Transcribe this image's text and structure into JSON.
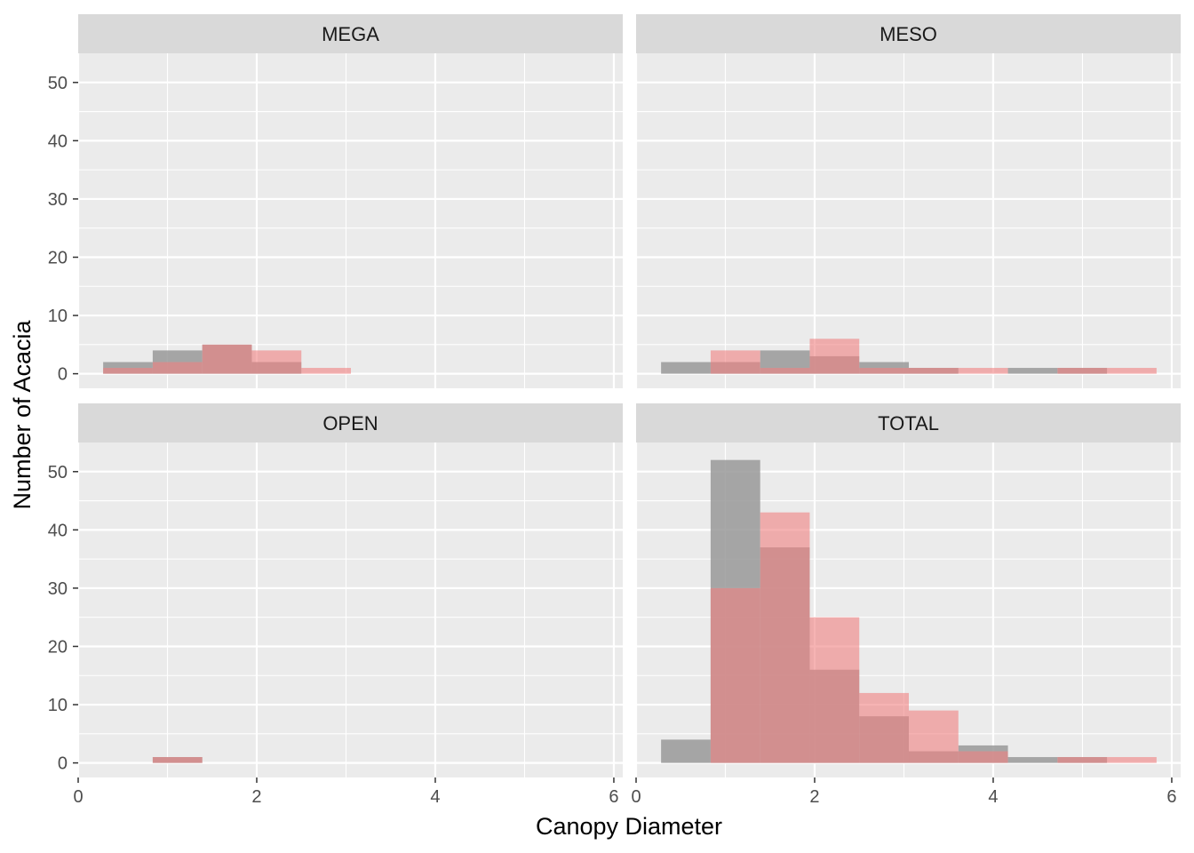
{
  "chart_data": {
    "type": "bar",
    "layout": "facet-wrap 2x2, shared axes, overlaid semi-transparent histograms",
    "xlabel": "Canopy Diameter",
    "ylabel": "Number of Acacia",
    "xlim": [
      0,
      6.1
    ],
    "ylim": [
      -2.5,
      55
    ],
    "x_ticks": [
      0,
      2,
      4,
      6
    ],
    "y_ticks": [
      0,
      10,
      20,
      30,
      40,
      50
    ],
    "grid": true,
    "legend": "none",
    "bin_edges": [
      0.28,
      0.835,
      1.39,
      1.945,
      2.5,
      3.055,
      3.61,
      4.165,
      4.72,
      5.275,
      5.83
    ],
    "series_styles": [
      {
        "color": "#999999",
        "opacity": 0.85
      },
      {
        "color": "#f08080",
        "opacity": 0.6
      }
    ],
    "panels": [
      {
        "strip": "MEGA",
        "series": [
          {
            "values": [
              2,
              4,
              5,
              2,
              0,
              0,
              0,
              0,
              0,
              0
            ]
          },
          {
            "values": [
              1,
              2,
              5,
              4,
              1,
              0,
              0,
              0,
              0,
              0
            ]
          }
        ]
      },
      {
        "strip": "MESO",
        "series": [
          {
            "values": [
              2,
              2,
              4,
              3,
              2,
              1,
              0,
              1,
              1,
              0
            ]
          },
          {
            "values": [
              0,
              4,
              1,
              6,
              1,
              1,
              1,
              0,
              1,
              1
            ]
          }
        ]
      },
      {
        "strip": "OPEN",
        "series": [
          {
            "values": [
              0,
              1,
              0,
              0,
              0,
              0,
              0,
              0,
              0,
              0
            ]
          },
          {
            "values": [
              0,
              1,
              0,
              0,
              0,
              0,
              0,
              0,
              0,
              0
            ]
          }
        ]
      },
      {
        "strip": "TOTAL",
        "series": [
          {
            "values": [
              4,
              52,
              37,
              16,
              8,
              2,
              3,
              1,
              1,
              0
            ]
          },
          {
            "values": [
              0,
              30,
              43,
              25,
              12,
              9,
              2,
              0,
              1,
              1
            ]
          }
        ]
      }
    ]
  }
}
